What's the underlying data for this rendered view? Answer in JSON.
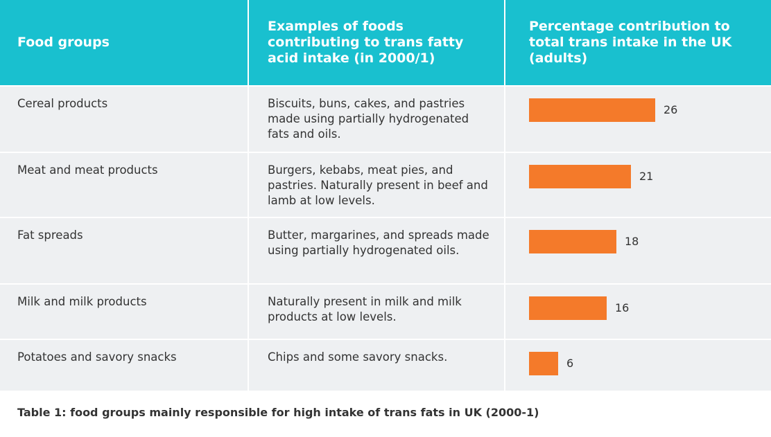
{
  "headers": {
    "col1": "Food groups",
    "col2": "Examples of foods contributing to trans fatty acid intake (in 2000/1)",
    "col3": "Percentage contribution to total trans intake in the UK (adults)"
  },
  "rows": [
    {
      "group": "Cereal products",
      "examples": "Biscuits, buns, cakes, and pastries made using partially hydrogenated fats and oils.",
      "value_label": "26",
      "value": 26
    },
    {
      "group": "Meat and meat products",
      "examples": "Burgers, kebabs, meat pies, and pastries. Naturally present in beef and lamb at low levels.",
      "value_label": "21",
      "value": 21
    },
    {
      "group": "Fat spreads",
      "examples": "Butter, margarines, and spreads made using partially hydrogenated oils.",
      "value_label": "18",
      "value": 18
    },
    {
      "group": "Milk and milk products",
      "examples": "Naturally present in milk and milk products  at low levels.",
      "value_label": "16",
      "value": 16
    },
    {
      "group": "Potatoes and savory snacks",
      "examples": "Chips and some savory snacks.",
      "value_label": "6",
      "value": 6
    }
  ],
  "caption": "Table 1: food groups mainly responsible for high intake of trans fats in UK (2000-1)",
  "colors": {
    "header_bg": "#19c0cf",
    "bar": "#f47a2a",
    "row_bg": "#eef0f2"
  }
}
